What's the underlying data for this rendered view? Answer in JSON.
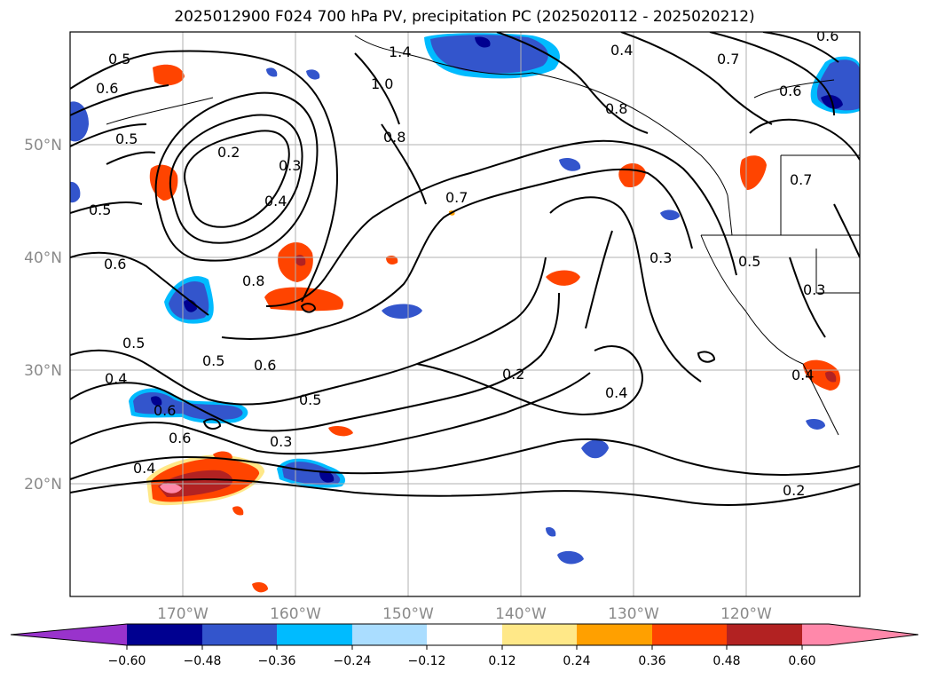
{
  "title": "2025012900 F024 700 hPa PV, precipitation PC (2025020112 - 2025020212)",
  "lon_labels": [
    "170°W",
    "160°W",
    "150°W",
    "140°W",
    "130°W",
    "120°W"
  ],
  "lat_labels": [
    "50°N",
    "40°N",
    "30°N",
    "20°N"
  ],
  "contour_labels": [
    "0.5",
    "0.6",
    "0.5",
    "0.5",
    "0.6",
    "0.5",
    "0.4",
    "0.2",
    "0.3",
    "0.4",
    "0.8",
    "1.4",
    "1.0",
    "0.8",
    "0.4",
    "0.7",
    "0.6",
    "0.7",
    "0.6",
    "0.7",
    "0.3",
    "0.5",
    "0.3",
    "0.8",
    "0.5",
    "0.6",
    "0.5",
    "0.3",
    "0.6",
    "0.4",
    "0.2",
    "0.4",
    "0.2",
    "0.4",
    "0.6"
  ],
  "colorbar": {
    "colors": [
      "#9933cc",
      "#000090",
      "#3355cc",
      "#00bbff",
      "#aaddff",
      "#ffffff",
      "#ffe888",
      "#ffa000",
      "#ff4400",
      "#b22222",
      "#ff88aa",
      "#ff88aa"
    ],
    "tick_labels": [
      "−0.60",
      "−0.48",
      "−0.36",
      "−0.24",
      "−0.12",
      "0.12",
      "0.24",
      "0.36",
      "0.48",
      "0.60"
    ]
  }
}
